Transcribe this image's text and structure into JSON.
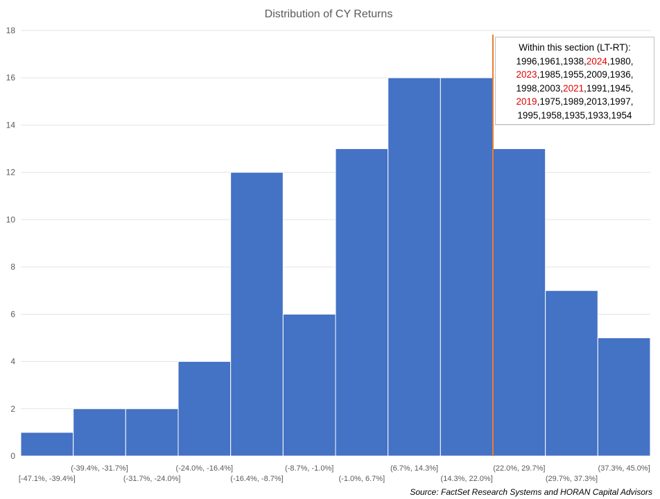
{
  "chart_data": {
    "type": "bar",
    "title": "Distribution of CY Returns",
    "xlabel": "",
    "ylabel": "",
    "ylim": [
      0,
      18
    ],
    "yticks": [
      0,
      2,
      4,
      6,
      8,
      10,
      12,
      14,
      16,
      18
    ],
    "grid": true,
    "categories": [
      "[-47.1%, -39.4%]",
      "(-39.4%, -31.7%]",
      "(-31.7%, -24.0%]",
      "(-24.0%, -16.4%]",
      "(-16.4%, -8.7%]",
      "(-8.7%, -1.0%]",
      "(-1.0%, 6.7%]",
      "(6.7%, 14.3%]",
      "(14.3%, 22.0%]",
      "(22.0%, 29.7%]",
      "(29.7%, 37.3%]",
      "(37.3%, 45.0%]"
    ],
    "values": [
      1,
      2,
      2,
      4,
      12,
      6,
      13,
      16,
      16,
      13,
      7,
      5
    ],
    "bar_color": "#4472C4",
    "marker_line": {
      "color": "#ED7D31",
      "x_value_percent": 22.0
    },
    "annotation": {
      "header": "Within this section (LT-RT):",
      "lines": [
        [
          {
            "text": "1996,1961,1938,",
            "highlight": false
          },
          {
            "text": "2024",
            "highlight": true
          },
          {
            "text": ",1980,",
            "highlight": false
          }
        ],
        [
          {
            "text": "2023",
            "highlight": true
          },
          {
            "text": ",1985,1955,2009,1936,",
            "highlight": false
          }
        ],
        [
          {
            "text": "1998,2003,",
            "highlight": false
          },
          {
            "text": "2021",
            "highlight": true
          },
          {
            "text": ",1991,1945,",
            "highlight": false
          }
        ],
        [
          {
            "text": "2019",
            "highlight": true
          },
          {
            "text": ",1975,1989,2013,1997,",
            "highlight": false
          }
        ],
        [
          {
            "text": "1995,1958,1935,1933,1954",
            "highlight": false
          }
        ]
      ],
      "highlight_color": "#E00000"
    }
  },
  "source": "Source: FactSet Research Systems and HORAN Capital Advisors"
}
